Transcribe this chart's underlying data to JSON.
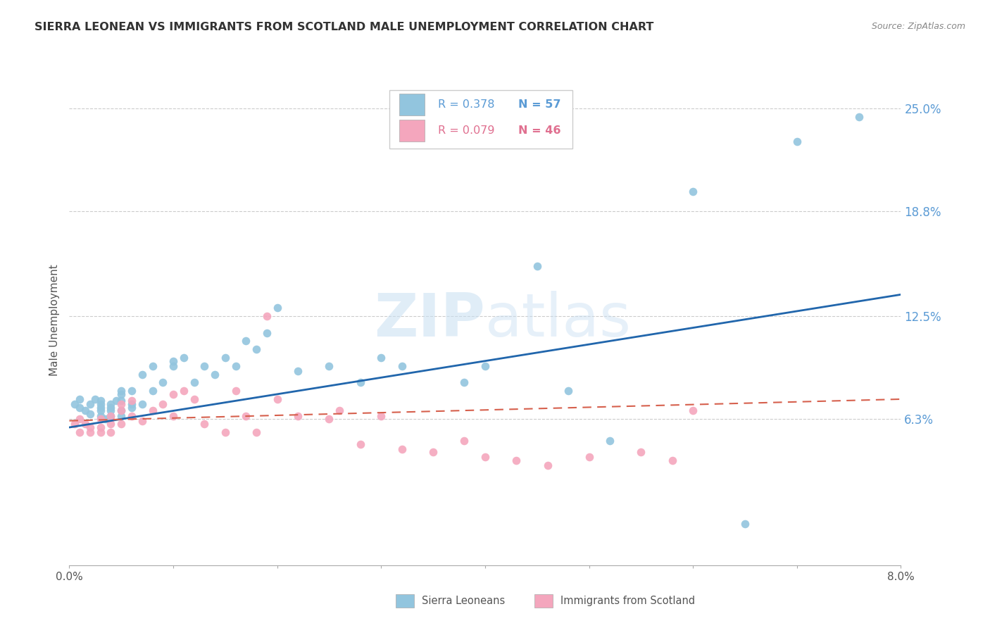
{
  "title": "SIERRA LEONEAN VS IMMIGRANTS FROM SCOTLAND MALE UNEMPLOYMENT CORRELATION CHART",
  "source": "Source: ZipAtlas.com",
  "ylabel": "Male Unemployment",
  "watermark": "ZIPatlas",
  "ytick_labels": [
    "25.0%",
    "18.8%",
    "12.5%",
    "6.3%"
  ],
  "ytick_values": [
    0.25,
    0.188,
    0.125,
    0.063
  ],
  "xmin": 0.0,
  "xmax": 0.08,
  "ymin": -0.025,
  "ymax": 0.27,
  "blue_color": "#92c5de",
  "pink_color": "#f4a6bd",
  "line_blue": "#2166ac",
  "line_pink": "#d6604d",
  "legend_R1": "R = 0.378",
  "legend_N1": "N = 57",
  "legend_R2": "R = 0.079",
  "legend_N2": "N = 46",
  "series1_label": "Sierra Leoneans",
  "series2_label": "Immigrants from Scotland",
  "blue_x": [
    0.0005,
    0.001,
    0.001,
    0.0015,
    0.002,
    0.002,
    0.0025,
    0.003,
    0.003,
    0.003,
    0.003,
    0.003,
    0.0035,
    0.004,
    0.004,
    0.004,
    0.004,
    0.0045,
    0.005,
    0.005,
    0.005,
    0.005,
    0.005,
    0.006,
    0.006,
    0.006,
    0.007,
    0.007,
    0.008,
    0.008,
    0.009,
    0.01,
    0.01,
    0.011,
    0.012,
    0.013,
    0.014,
    0.015,
    0.016,
    0.017,
    0.018,
    0.019,
    0.02,
    0.022,
    0.025,
    0.028,
    0.03,
    0.032,
    0.038,
    0.04,
    0.045,
    0.048,
    0.052,
    0.06,
    0.065,
    0.07,
    0.076
  ],
  "blue_y": [
    0.072,
    0.075,
    0.07,
    0.068,
    0.072,
    0.066,
    0.075,
    0.07,
    0.068,
    0.065,
    0.072,
    0.074,
    0.063,
    0.07,
    0.068,
    0.065,
    0.072,
    0.074,
    0.065,
    0.068,
    0.078,
    0.08,
    0.074,
    0.07,
    0.072,
    0.08,
    0.072,
    0.09,
    0.08,
    0.095,
    0.085,
    0.095,
    0.098,
    0.1,
    0.085,
    0.095,
    0.09,
    0.1,
    0.095,
    0.11,
    0.105,
    0.115,
    0.13,
    0.092,
    0.095,
    0.085,
    0.1,
    0.095,
    0.085,
    0.095,
    0.155,
    0.08,
    0.05,
    0.2,
    0.0,
    0.23,
    0.245
  ],
  "pink_x": [
    0.0005,
    0.001,
    0.001,
    0.0015,
    0.002,
    0.002,
    0.003,
    0.003,
    0.003,
    0.004,
    0.004,
    0.004,
    0.005,
    0.005,
    0.005,
    0.006,
    0.006,
    0.007,
    0.008,
    0.009,
    0.01,
    0.01,
    0.011,
    0.012,
    0.013,
    0.015,
    0.016,
    0.017,
    0.018,
    0.019,
    0.02,
    0.022,
    0.025,
    0.026,
    0.028,
    0.03,
    0.032,
    0.035,
    0.038,
    0.04,
    0.043,
    0.046,
    0.05,
    0.055,
    0.058,
    0.06
  ],
  "pink_y": [
    0.06,
    0.063,
    0.055,
    0.06,
    0.055,
    0.058,
    0.055,
    0.058,
    0.063,
    0.055,
    0.06,
    0.065,
    0.06,
    0.068,
    0.072,
    0.065,
    0.074,
    0.062,
    0.068,
    0.072,
    0.065,
    0.078,
    0.08,
    0.075,
    0.06,
    0.055,
    0.08,
    0.065,
    0.055,
    0.125,
    0.075,
    0.065,
    0.063,
    0.068,
    0.048,
    0.065,
    0.045,
    0.043,
    0.05,
    0.04,
    0.038,
    0.035,
    0.04,
    0.043,
    0.038,
    0.068
  ],
  "blue_trend_x": [
    0.0,
    0.08
  ],
  "blue_trend_y": [
    0.058,
    0.138
  ],
  "pink_trend_x": [
    0.0,
    0.08
  ],
  "pink_trend_y": [
    0.062,
    0.075
  ]
}
